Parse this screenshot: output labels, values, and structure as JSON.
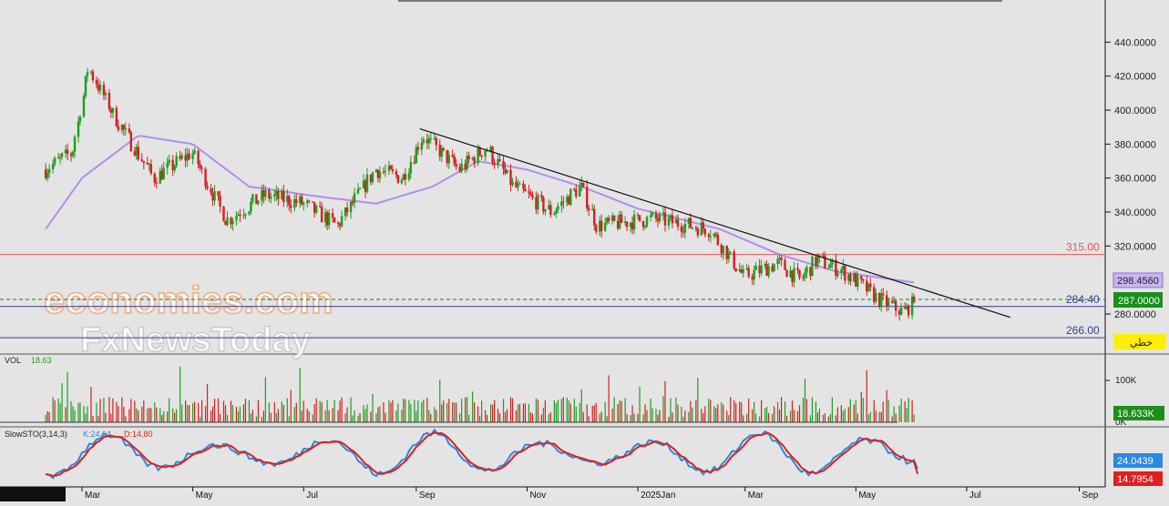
{
  "watermark": {
    "line1": "economies.com",
    "line2": "FxNewsToday"
  },
  "price_axis_ticks": [
    "440.0000",
    "420.0000",
    "400.0000",
    "380.0000",
    "360.0000",
    "340.0000",
    "320.0000",
    "280.0000"
  ],
  "volume_axis_ticks": [
    "100K",
    "0K"
  ],
  "time_axis_ticks": [
    "Mar",
    "May",
    "Jul",
    "Sep",
    "Nov",
    "2025Jan",
    "Mar",
    "May",
    "Jul",
    "Sep"
  ],
  "levels": [
    {
      "value": 315.0,
      "label": "315.00",
      "color": "#e05a5a"
    },
    {
      "value": 284.4,
      "label": "284.40",
      "color": "#2c3e9a"
    },
    {
      "value": 266.0,
      "label": "266.00",
      "color": "#2c3e9a"
    }
  ],
  "badges": {
    "ma_value": "298.4560",
    "last_price": "287.0000",
    "arabic_tag": "خطي",
    "volume_value": "18.633K",
    "k_value": "24.0439",
    "d_value": "14.7954"
  },
  "volume_panel": {
    "label": "VOL",
    "value": "18.63"
  },
  "stoch_panel": {
    "label": "SlowSTO(3,14,3)",
    "k_label": "K:24.04",
    "d_label": "D:14.80"
  },
  "colors": {
    "up": "#1f9e1f",
    "down": "#d42020",
    "ma": "#b48cf0",
    "stoch_k": "#2a8ae0",
    "stoch_d": "#e02020",
    "trendline": "#111111"
  },
  "chart_data": {
    "type": "candlestick",
    "period": "Feb 2024 – Jun 2025 (daily)",
    "price_range": [
      260,
      450
    ],
    "price_series_approx": [
      {
        "x": "2024-02-10",
        "y": 365
      },
      {
        "x": "2024-02-25",
        "y": 375
      },
      {
        "x": "2024-03-05",
        "y": 425
      },
      {
        "x": "2024-03-20",
        "y": 395
      },
      {
        "x": "2024-04-10",
        "y": 360
      },
      {
        "x": "2024-05-01",
        "y": 375
      },
      {
        "x": "2024-05-20",
        "y": 335
      },
      {
        "x": "2024-06-10",
        "y": 350
      },
      {
        "x": "2024-07-01",
        "y": 345
      },
      {
        "x": "2024-07-20",
        "y": 332
      },
      {
        "x": "2024-08-10",
        "y": 365
      },
      {
        "x": "2024-08-25",
        "y": 360
      },
      {
        "x": "2024-09-05",
        "y": 385
      },
      {
        "x": "2024-09-25",
        "y": 365
      },
      {
        "x": "2024-10-10",
        "y": 378
      },
      {
        "x": "2024-10-25",
        "y": 355
      },
      {
        "x": "2024-11-15",
        "y": 340
      },
      {
        "x": "2024-12-01",
        "y": 355
      },
      {
        "x": "2024-12-10",
        "y": 332
      },
      {
        "x": "2025-01-10",
        "y": 336
      },
      {
        "x": "2025-02-10",
        "y": 330
      },
      {
        "x": "2025-03-01",
        "y": 302
      },
      {
        "x": "2025-03-20",
        "y": 310
      },
      {
        "x": "2025-04-01",
        "y": 300
      },
      {
        "x": "2025-04-10",
        "y": 312
      },
      {
        "x": "2025-04-25",
        "y": 305
      },
      {
        "x": "2025-05-15",
        "y": 288
      },
      {
        "x": "2025-05-28",
        "y": 281
      },
      {
        "x": "2025-06-03",
        "y": 287
      }
    ],
    "moving_average_approx": [
      {
        "x": "2024-02-10",
        "y": 330
      },
      {
        "x": "2024-03-01",
        "y": 360
      },
      {
        "x": "2024-04-01",
        "y": 385
      },
      {
        "x": "2024-05-01",
        "y": 380
      },
      {
        "x": "2024-06-01",
        "y": 355
      },
      {
        "x": "2024-07-10",
        "y": 349
      },
      {
        "x": "2024-08-10",
        "y": 345
      },
      {
        "x": "2024-09-10",
        "y": 355
      },
      {
        "x": "2024-10-05",
        "y": 370
      },
      {
        "x": "2024-11-01",
        "y": 365
      },
      {
        "x": "2024-12-01",
        "y": 355
      },
      {
        "x": "2025-01-01",
        "y": 342
      },
      {
        "x": "2025-02-15",
        "y": 330
      },
      {
        "x": "2025-03-20",
        "y": 315
      },
      {
        "x": "2025-04-20",
        "y": 305
      },
      {
        "x": "2025-06-03",
        "y": 298.456
      }
    ],
    "trendline": [
      {
        "x": "2024-09-03",
        "y": 389
      },
      {
        "x": "2025-07-25",
        "y": 278
      }
    ],
    "horizontal_levels": [
      315.0,
      284.4,
      266.0
    ],
    "last_price": 287.0,
    "ma_last": 298.456,
    "volume_last": 18.633,
    "stochastic": {
      "k": 24.0439,
      "d": 14.7954
    }
  }
}
